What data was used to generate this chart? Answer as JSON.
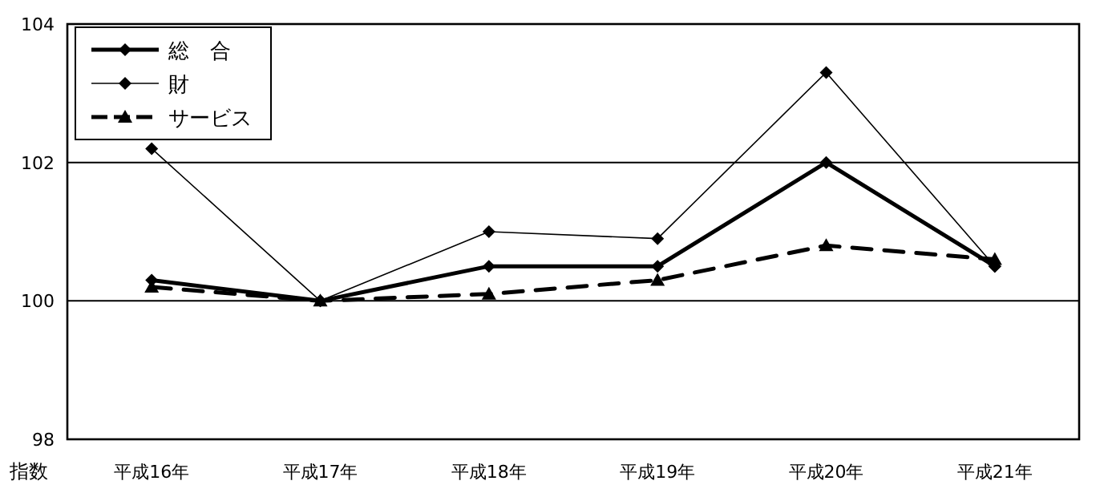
{
  "chart_data": {
    "type": "line",
    "ylabel": "指数",
    "categories": [
      "平成16年",
      "平成17年",
      "平成18年",
      "平成19年",
      "平成20年",
      "平成21年"
    ],
    "series": [
      {
        "name": "総　合",
        "color": "#000000",
        "marker": "diamond",
        "line_style": "solid",
        "values": [
          100.3,
          100.0,
          100.5,
          100.5,
          102.0,
          100.5
        ]
      },
      {
        "name": "財",
        "color": "#000000",
        "marker": "diamond",
        "line_style": "solid",
        "values": [
          102.2,
          100.0,
          101.0,
          100.9,
          103.3,
          100.5
        ]
      },
      {
        "name": "サービス",
        "color": "#000000",
        "marker": "triangle",
        "line_style": "dashed",
        "values": [
          100.2,
          100.0,
          100.1,
          100.3,
          100.8,
          100.6
        ]
      }
    ],
    "ylim": [
      98,
      104
    ],
    "yticks": [
      98,
      100,
      102,
      104
    ],
    "grid": "y",
    "legend": "top left"
  }
}
